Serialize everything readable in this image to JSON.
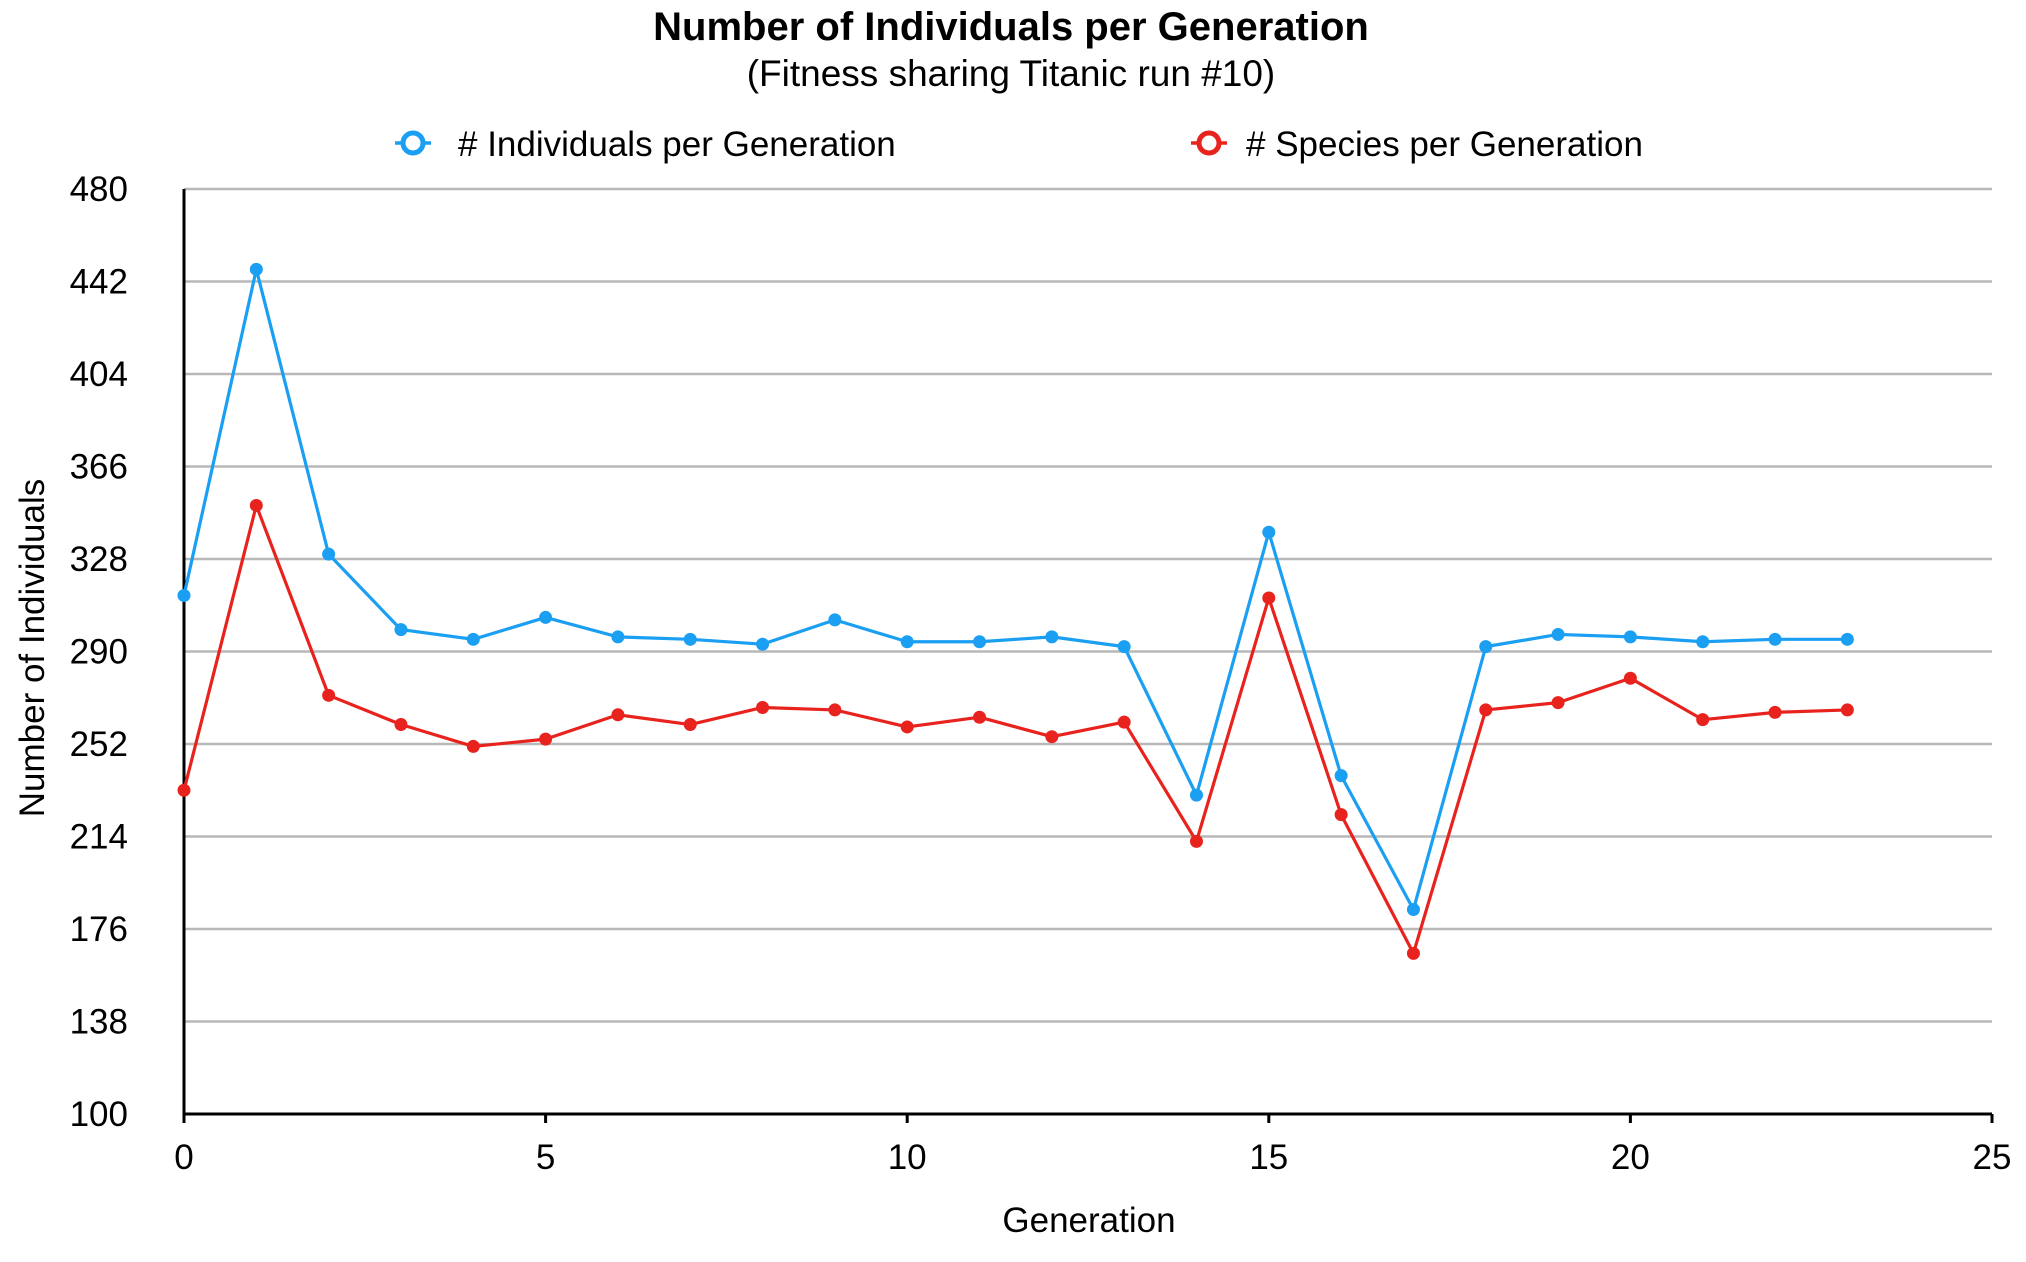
{
  "chart_data": {
    "type": "line",
    "title": "Number of Individuals per Generation",
    "subtitle": "(Fitness sharing Titanic run #10)",
    "xlabel": "Generation",
    "ylabel": "Number of Individuals",
    "xlim": [
      0,
      25
    ],
    "ylim": [
      100,
      480
    ],
    "x_ticks": [
      0,
      5,
      10,
      15,
      20,
      25
    ],
    "y_ticks": [
      100,
      138,
      176,
      214,
      252,
      290,
      328,
      366,
      404,
      442,
      480
    ],
    "grid": true,
    "legend_position": "top",
    "x": [
      0,
      1,
      2,
      3,
      4,
      5,
      6,
      7,
      8,
      9,
      10,
      11,
      12,
      13,
      14,
      15,
      16,
      17,
      18,
      19,
      20,
      21,
      22,
      23
    ],
    "series": [
      {
        "name": "# Individuals per Generation",
        "color": "#1a9ff2",
        "values": [
          313,
          447,
          330,
          299,
          295,
          304,
          296,
          295,
          293,
          303,
          294,
          294,
          296,
          292,
          231,
          339,
          239,
          184,
          292,
          297,
          296,
          294,
          295,
          295
        ]
      },
      {
        "name": "# Species per Generation",
        "color": "#e8231e",
        "values": [
          233,
          350,
          272,
          260,
          251,
          254,
          264,
          260,
          267,
          266,
          259,
          263,
          255,
          261,
          212,
          312,
          223,
          166,
          266,
          269,
          279,
          262,
          265,
          266
        ]
      }
    ]
  }
}
